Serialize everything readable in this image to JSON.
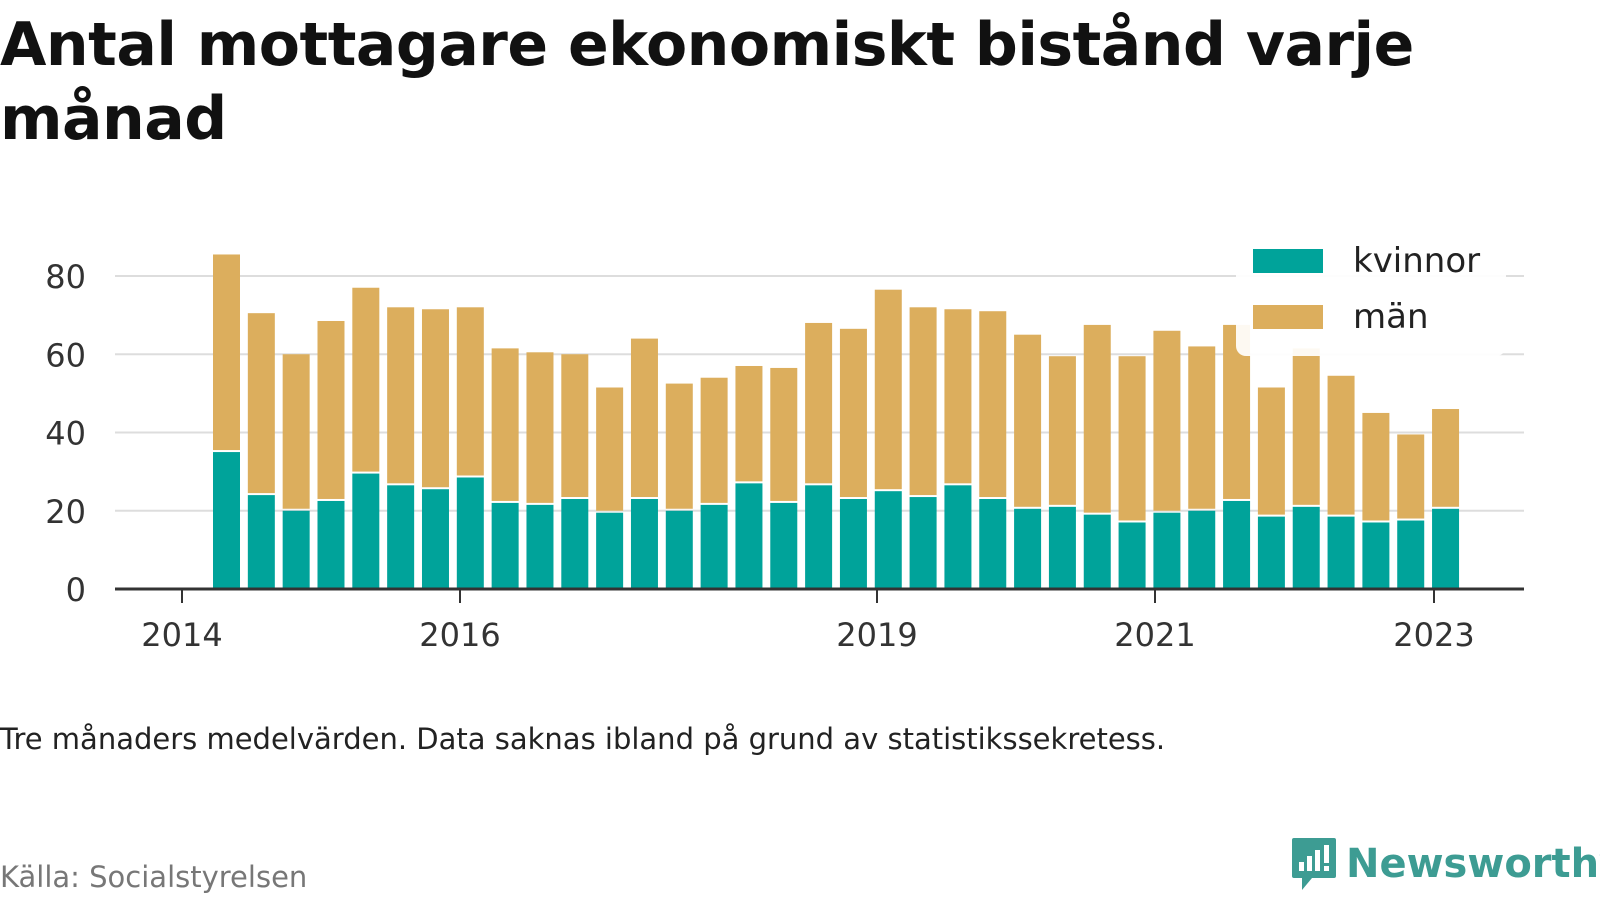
{
  "title": "Antal mottagare ekonomiskt bistånd varje månad",
  "note": "Tre månaders medelvärden. Data saknas ibland på grund av statistikssekretess.",
  "source": "Källa: Socialstyrelsen",
  "brand": {
    "name": "Newsworthy",
    "icon": "bar-chart-speech-bubble-icon"
  },
  "colors": {
    "kvinnor": "#00a39a",
    "man": "#dcae5d",
    "grid": "#dddddd",
    "axis": "#333333"
  },
  "chart_data": {
    "type": "bar",
    "stacked": true,
    "title": "Antal mottagare ekonomiskt bistånd varje månad",
    "x_tick_labels": [
      "2014",
      "2016",
      "2019",
      "2021",
      "2023"
    ],
    "y_ticks": [
      0,
      20,
      40,
      60,
      80
    ],
    "ylim": [
      0,
      85
    ],
    "grid": true,
    "legend_position": "top-right",
    "series": [
      {
        "name": "kvinnor",
        "values": [
          35,
          24,
          20,
          22.5,
          29.5,
          26.5,
          25.5,
          28.5,
          22,
          21.5,
          23,
          19.5,
          23,
          20,
          21.5,
          27,
          22,
          26.5,
          23,
          25,
          23.5,
          26.5,
          23,
          20.5,
          21,
          19,
          17,
          19.5,
          20,
          22.5,
          18.5,
          21,
          18.5,
          17,
          17.5,
          20.5
        ]
      },
      {
        "name": "män",
        "values": [
          50.5,
          46.5,
          40,
          46,
          47.5,
          45.5,
          46,
          43.5,
          39.5,
          39,
          37,
          32,
          41,
          32.5,
          32.5,
          30,
          34.5,
          41.5,
          43.5,
          51.5,
          48.5,
          45,
          48,
          44.5,
          38.5,
          48.5,
          42.5,
          46.5,
          42,
          45,
          33,
          40.5,
          36,
          28,
          22,
          25.5
        ]
      }
    ]
  }
}
